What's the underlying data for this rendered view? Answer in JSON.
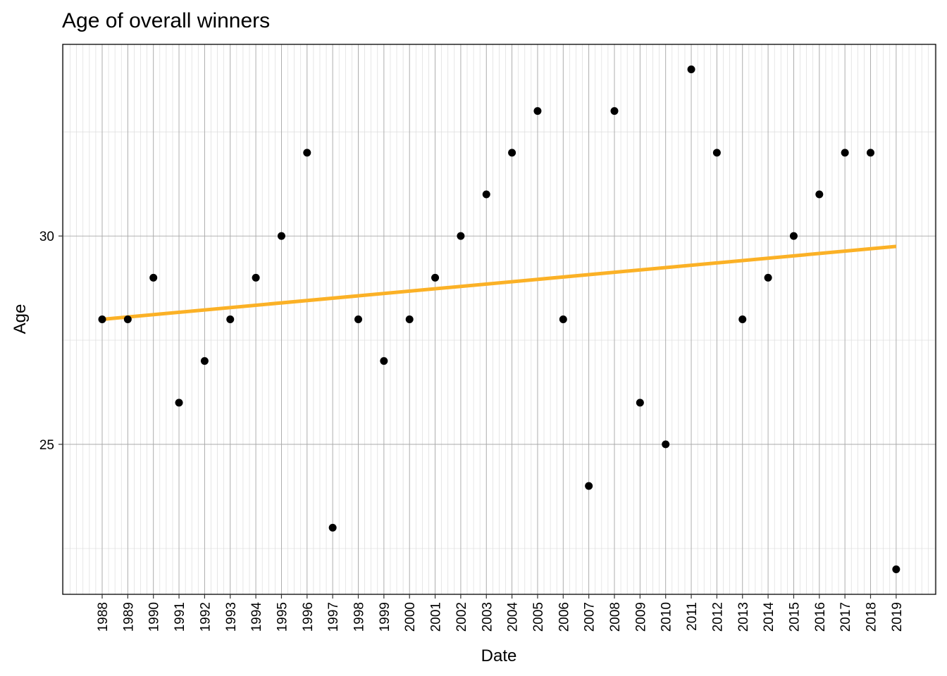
{
  "chart_data": {
    "type": "scatter",
    "title": "Age of overall winners",
    "xlabel": "Date",
    "ylabel": "Age",
    "x": [
      "1988",
      "1989",
      "1990",
      "1991",
      "1992",
      "1993",
      "1994",
      "1995",
      "1996",
      "1997",
      "1998",
      "1999",
      "2000",
      "2001",
      "2002",
      "2003",
      "2004",
      "2005",
      "2006",
      "2007",
      "2008",
      "2009",
      "2010",
      "2011",
      "2012",
      "2013",
      "2014",
      "2015",
      "2016",
      "2017",
      "2018",
      "2019"
    ],
    "y": [
      28,
      28,
      29,
      26,
      27,
      28,
      29,
      30,
      32,
      23,
      28,
      27,
      28,
      29,
      30,
      31,
      32,
      33,
      28,
      24,
      33,
      26,
      25,
      34,
      32,
      28,
      29,
      30,
      31,
      32,
      32,
      22
    ],
    "trend": {
      "name": "linear fit",
      "start": 28.0,
      "end": 29.75,
      "color": "#FBB126"
    },
    "point_color": "#000000",
    "ylim": [
      21.4,
      34.6
    ],
    "yticks": [
      25,
      30
    ],
    "ygrid_minor": [
      22.5,
      27.5,
      32.5
    ],
    "grid": true,
    "x_minor_grid_per_year": 4
  }
}
